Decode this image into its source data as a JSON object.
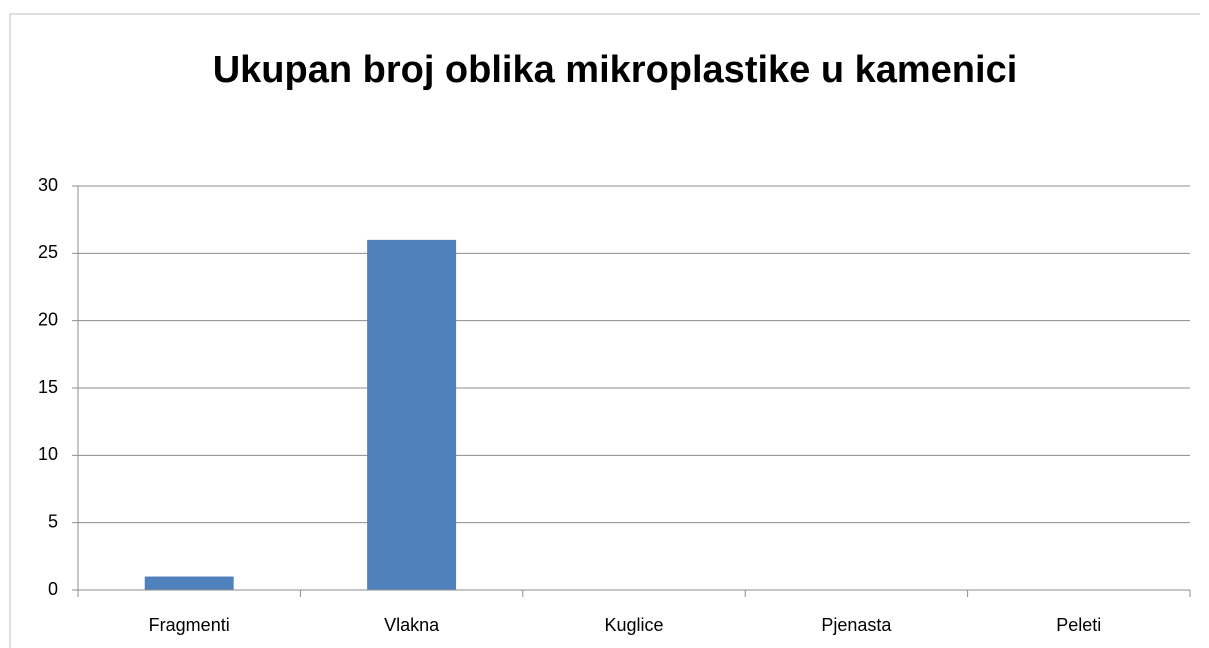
{
  "chart_data": {
    "type": "bar",
    "title": "Ukupan broj oblika mikroplastike u kamenici",
    "categories": [
      "Fragmenti",
      "Vlakna",
      "Kuglice",
      "Pjenasta",
      "Peleti"
    ],
    "values": [
      1,
      26,
      0,
      0,
      0
    ],
    "color": "#4f81bd",
    "ylim": [
      0,
      30
    ],
    "yticks": [
      0,
      5,
      10,
      15,
      20,
      25,
      30
    ],
    "grid": true
  }
}
